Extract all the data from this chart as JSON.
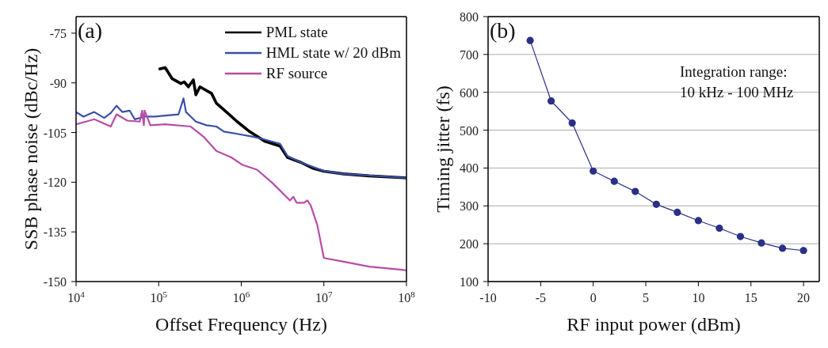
{
  "chart_data": [
    {
      "type": "line",
      "xlabel": "Offset Frequency (Hz)",
      "ylabel": "SSB phase noise (dBc/Hz)",
      "log": "x",
      "xlim": [
        10000,
        100000000
      ],
      "xticks": [
        {
          "value": 10000,
          "label": "10$^{4}$"
        },
        {
          "value": 100000,
          "label": "10$^{5}$"
        },
        {
          "value": 1000000,
          "label": "10$^{6}$"
        },
        {
          "value": 10000000,
          "label": "10$^{7}$"
        },
        {
          "value": 100000000,
          "label": "10$^{8}$"
        }
      ],
      "ylim": [
        -150,
        -70
      ],
      "yticks": [
        -150,
        -135,
        -120,
        -105,
        -90,
        -75
      ],
      "grid": false,
      "legend": "top right",
      "marker": "none",
      "line_style": "solid",
      "annotations": [
        "(a)"
      ],
      "series": [
        {
          "name": "PML state",
          "color": "#000000",
          "x": [
            100000,
            120000,
            145000,
            186000,
            204000,
            229000,
            263000,
            282000,
            316000,
            437000,
            501000,
            661000,
            891000,
            1260000,
            1660000,
            1950000,
            2400000,
            2950000,
            3630000,
            5250000,
            7410000,
            10000000,
            17400000,
            35500000,
            100000000
          ],
          "values": [
            -85.9,
            -85.4,
            -88.7,
            -90.2,
            -89.7,
            -91.2,
            -89.1,
            -93.6,
            -91.2,
            -93.2,
            -96.2,
            -98.8,
            -101.7,
            -104.7,
            -106.6,
            -107.7,
            -108.4,
            -109.1,
            -112.5,
            -114,
            -115.8,
            -116.7,
            -117.5,
            -118.1,
            -118.7
          ]
        },
        {
          "name": "HML state w/ 20 dBm",
          "color": "#3a4fa8",
          "x": [
            10000,
            12300,
            16600,
            21900,
            26300,
            30900,
            36300,
            44700,
            51300,
            67600,
            91200,
            120000,
            174000,
            200000,
            214000,
            245000,
            282000,
            380000,
            501000,
            617000,
            891000,
            1350000,
            1780000,
            2950000,
            3630000,
            5250000,
            10000000,
            17400000,
            100000000
          ],
          "values": [
            -98.8,
            -100.2,
            -98.8,
            -100.6,
            -99.1,
            -96.9,
            -98.8,
            -98.4,
            -101,
            -100.2,
            -100.2,
            -99.9,
            -99.5,
            -94.7,
            -98.8,
            -100.2,
            -101.7,
            -102.8,
            -103.2,
            -104.7,
            -105.4,
            -106.2,
            -106.9,
            -108.4,
            -112.1,
            -114,
            -116.6,
            -117.5,
            -118.7
          ]
        },
        {
          "name": "RF source",
          "color": "#b84ca8",
          "x": [
            10000,
            13200,
            16600,
            26300,
            30900,
            41700,
            58900,
            63100,
            66100,
            67600,
            79400,
            120000,
            245000,
            347000,
            501000,
            759000,
            1020000,
            1550000,
            2400000,
            3890000,
            4270000,
            4680000,
            5750000,
            6310000,
            6920000,
            8320000,
            10000000,
            17400000,
            35500000,
            100000000
          ],
          "values": [
            -102.5,
            -101.7,
            -101,
            -103.2,
            -99.5,
            -101.4,
            -101.7,
            -98.4,
            -102.8,
            -98.4,
            -102.8,
            -102.5,
            -103.2,
            -106.2,
            -110.6,
            -112.5,
            -114.7,
            -116.2,
            -120.3,
            -125.5,
            -124.4,
            -126.2,
            -126.2,
            -125.5,
            -127,
            -132.9,
            -142.9,
            -144,
            -145.5,
            -146.6
          ]
        }
      ]
    },
    {
      "type": "line",
      "xlabel": "RF input power (dBm)",
      "ylabel": "Timing jitter (fs)",
      "xlim": [
        -10,
        21.5
      ],
      "xticks": [
        -10,
        -5,
        0,
        5,
        10,
        15,
        20
      ],
      "ylim": [
        100,
        800
      ],
      "yticks": [
        100,
        200,
        300,
        400,
        500,
        600,
        700,
        800
      ],
      "grid": "y",
      "legend": false,
      "marker": "circle",
      "line_style": "solid",
      "annotations": [
        "(b)",
        "Integration range:\n10 kHz - 100 MHz"
      ],
      "series": [
        {
          "color": "#2b2f86",
          "x": [
            -6,
            -4,
            -2,
            0,
            2,
            4,
            6,
            8,
            10,
            12,
            14,
            16,
            18,
            20
          ],
          "values": [
            737,
            577,
            519,
            392,
            365,
            338,
            304,
            283,
            261,
            241,
            219,
            202,
            188,
            182
          ]
        }
      ]
    }
  ]
}
